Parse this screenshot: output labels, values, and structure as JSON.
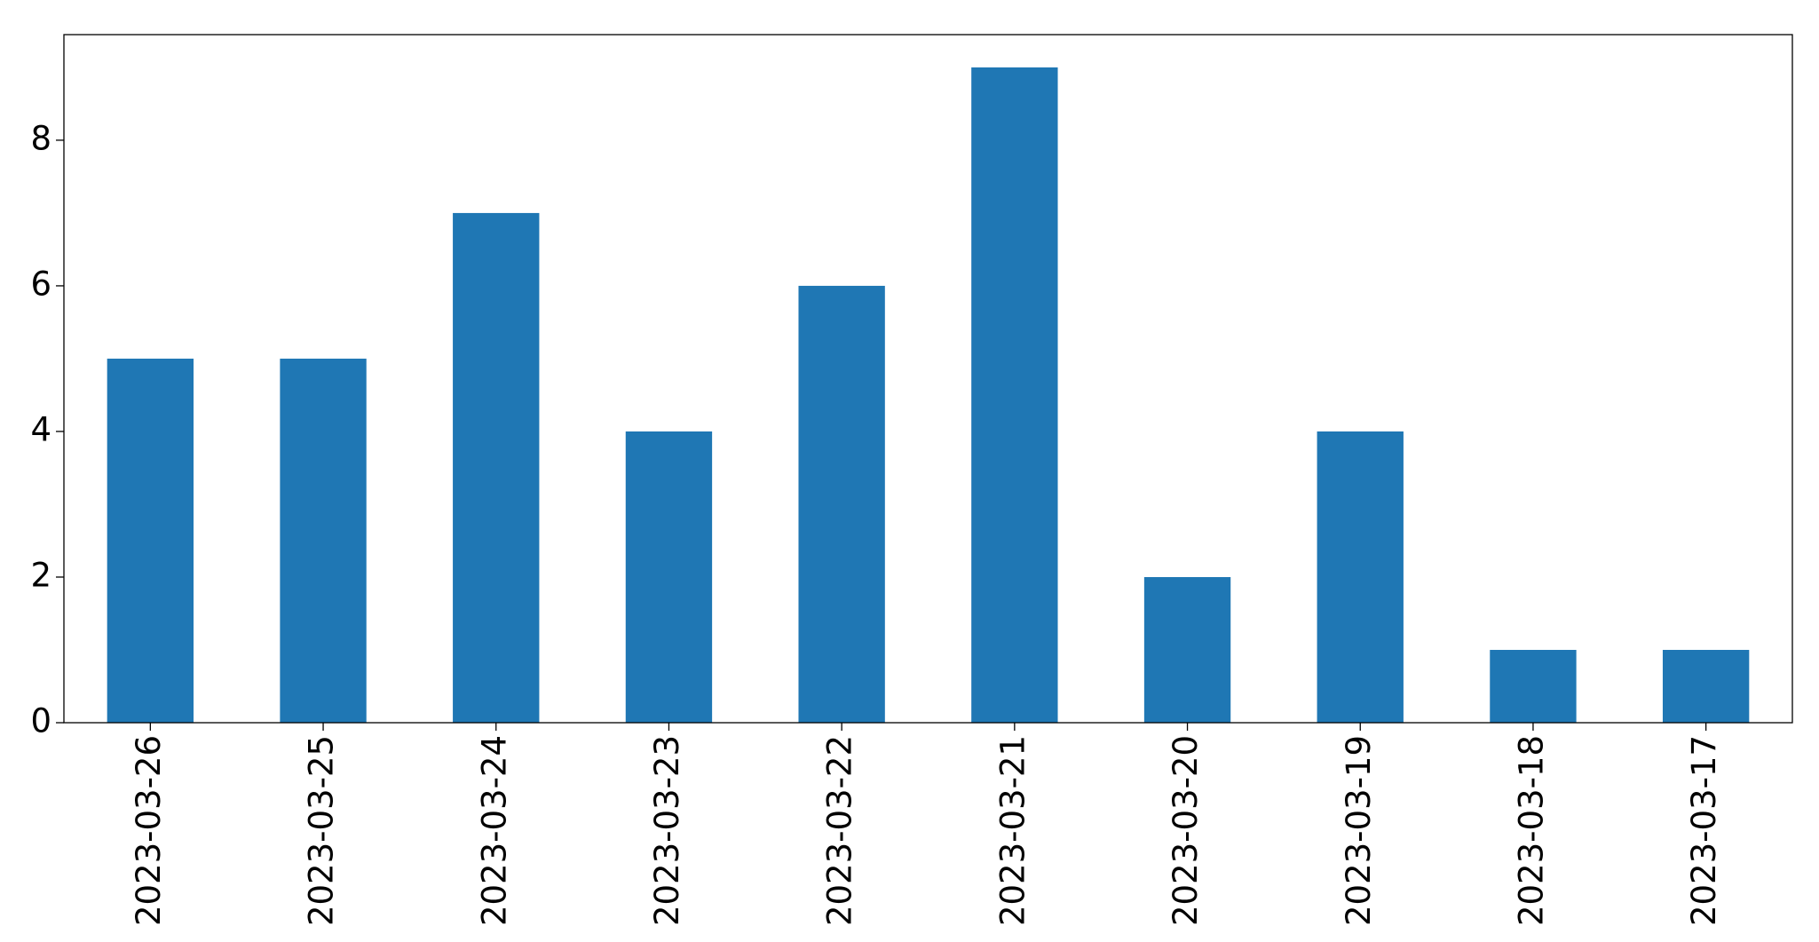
{
  "chart_data": {
    "type": "bar",
    "categories": [
      "2023-03-26",
      "2023-03-25",
      "2023-03-24",
      "2023-03-23",
      "2023-03-22",
      "2023-03-21",
      "2023-03-20",
      "2023-03-19",
      "2023-03-18",
      "2023-03-17"
    ],
    "values": [
      5,
      5,
      7,
      4,
      6,
      9,
      2,
      4,
      1,
      1
    ],
    "color": "#1f77b4",
    "ylim": [
      0,
      9.45
    ],
    "yticks": [
      0,
      2,
      4,
      6,
      8
    ],
    "grid": false
  }
}
